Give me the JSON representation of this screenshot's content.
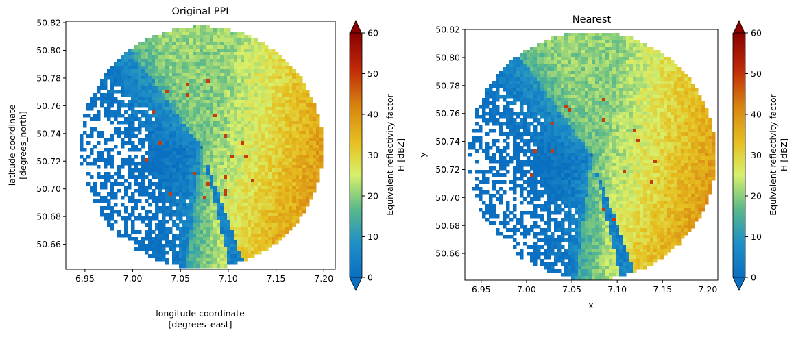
{
  "chart_data": [
    {
      "type": "heatmap",
      "title": "Original PPI",
      "xlabel_lines": [
        "longitude coordinate",
        "[degrees_east]"
      ],
      "ylabel_lines": [
        "latitude coordinate",
        "[degrees_north]"
      ],
      "xlim": [
        6.93,
        7.212
      ],
      "ylim": [
        50.642,
        50.821
      ],
      "xticks": [
        "6.95",
        "7.00",
        "7.05",
        "7.10",
        "7.15",
        "7.20"
      ],
      "yticks": [
        "50.66",
        "50.68",
        "50.70",
        "50.72",
        "50.74",
        "50.76",
        "50.78",
        "50.80",
        "50.82"
      ],
      "radar_center": {
        "lon": 7.072,
        "lat": 50.73
      },
      "colorbar": {
        "label_lines": [
          "Equivalent reflectivity factor",
          "H [dBZ]"
        ],
        "ticks": [
          "0",
          "10",
          "20",
          "30",
          "40",
          "50",
          "60"
        ],
        "range": [
          0,
          60
        ],
        "extend": "both"
      }
    },
    {
      "type": "heatmap",
      "title": "Nearest",
      "xlabel_lines": [
        "x"
      ],
      "ylabel_lines": [
        "y"
      ],
      "xlim": [
        6.932,
        7.211
      ],
      "ylim": [
        50.641,
        50.82
      ],
      "xticks": [
        "6.95",
        "7.00",
        "7.05",
        "7.10",
        "7.15",
        "7.20"
      ],
      "yticks": [
        "50.66",
        "50.68",
        "50.70",
        "50.72",
        "50.74",
        "50.76",
        "50.78",
        "50.80",
        "50.82"
      ],
      "radar_center": {
        "lon": 7.072,
        "lat": 50.73
      },
      "colorbar": {
        "label_lines": [
          "Equivalent reflectivity factor",
          "H [dBZ]"
        ],
        "ticks": [
          "0",
          "10",
          "20",
          "30",
          "40",
          "50",
          "60"
        ],
        "range": [
          0,
          60
        ],
        "extend": "both"
      }
    }
  ],
  "colormap_stops": [
    "#0a6fc1",
    "#1e8fc7",
    "#5bb98a",
    "#d8f06a",
    "#e6c020",
    "#d88410",
    "#c02a08",
    "#8a0000"
  ]
}
